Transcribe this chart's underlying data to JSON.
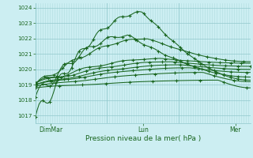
{
  "title": "",
  "xlabel": "Pression niveau de la mer( hPa )",
  "bg_color": "#cceef2",
  "grid_color_major": "#90c8cc",
  "grid_color_minor": "#b0dde0",
  "line_color": "#1a6620",
  "ylim": [
    1016.5,
    1024.3
  ],
  "yticks": [
    1017,
    1018,
    1019,
    1020,
    1021,
    1022,
    1023,
    1024
  ],
  "xtick_labels": [
    "DimMar",
    "Lun",
    "Mer"
  ],
  "xtick_positions": [
    0.07,
    0.5,
    0.93
  ],
  "n_points": 120,
  "series_params": [
    [
      1016.9,
      0.5,
      1023.7,
      1019.3,
      0.55,
      22,
      4
    ],
    [
      1018.2,
      0.43,
      1022.2,
      1019.5,
      0.45,
      19,
      4
    ],
    [
      1019.0,
      0.52,
      1022.0,
      1020.5,
      0.22,
      15,
      5
    ],
    [
      1019.1,
      0.58,
      1020.7,
      1020.4,
      0.18,
      11,
      6
    ],
    [
      1019.1,
      0.63,
      1020.5,
      1020.2,
      0.14,
      9,
      7
    ],
    [
      1019.0,
      0.68,
      1020.3,
      1020.0,
      0.1,
      8,
      8
    ],
    [
      1019.0,
      0.72,
      1020.1,
      1019.8,
      0.08,
      7,
      9
    ],
    [
      1018.9,
      0.78,
      1019.8,
      1019.2,
      0.07,
      6,
      11
    ],
    [
      1018.8,
      0.85,
      1019.3,
      1018.8,
      0.05,
      5,
      13
    ]
  ]
}
